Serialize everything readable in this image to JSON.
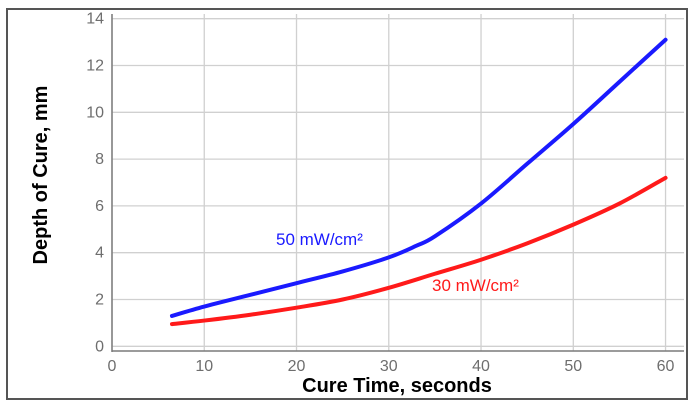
{
  "chart_data": {
    "type": "line",
    "title": "",
    "xlabel": "Cure Time, seconds",
    "ylabel": "Depth of Cure, mm",
    "xlim": [
      0,
      62
    ],
    "ylim": [
      -0.2,
      14.2
    ],
    "xticks": [
      0,
      10,
      20,
      30,
      40,
      50,
      60
    ],
    "yticks": [
      0,
      2,
      4,
      6,
      8,
      10,
      12,
      14
    ],
    "grid": true,
    "legend": "none",
    "series": [
      {
        "name": "50 mW/cm²",
        "color": "#1a1aff",
        "x": [
          6.5,
          10,
          15,
          20,
          25,
          30,
          33,
          35,
          40,
          45,
          50,
          55,
          60
        ],
        "y": [
          1.3,
          1.7,
          2.2,
          2.7,
          3.2,
          3.8,
          4.3,
          4.7,
          6.1,
          7.8,
          9.5,
          11.3,
          13.1
        ]
      },
      {
        "name": "30 mW/cm²",
        "color": "#ff1a1a",
        "x": [
          6.5,
          10,
          15,
          20,
          25,
          30,
          35,
          40,
          45,
          50,
          55,
          60
        ],
        "y": [
          0.95,
          1.1,
          1.35,
          1.65,
          2.0,
          2.5,
          3.1,
          3.7,
          4.4,
          5.2,
          6.1,
          7.2
        ]
      }
    ]
  }
}
